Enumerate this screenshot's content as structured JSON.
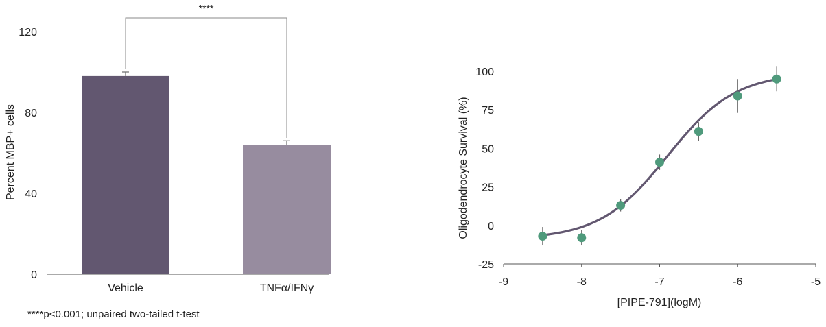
{
  "chart_data": [
    {
      "type": "bar",
      "categories": [
        "Vehicle",
        "TNFα/IFNγ"
      ],
      "values": [
        98,
        64
      ],
      "errors": [
        2,
        2
      ],
      "colors": [
        "#625770",
        "#978c9f"
      ],
      "ylabel": "Percent MBP+ cells",
      "xlabel": "",
      "ylim": [
        0,
        120
      ],
      "yticks": [
        0,
        40,
        80,
        120
      ],
      "grid": false,
      "significance": {
        "label": "****",
        "between": [
          "Vehicle",
          "TNFα/IFNγ"
        ]
      },
      "footnote": "****p<0.001; unpaired two-tailed t-test"
    },
    {
      "type": "scatter",
      "xlabel": "[PIPE-791](logM)",
      "ylabel": "Oligodendrocyte Survival (%)",
      "xlim": [
        -9,
        -5
      ],
      "ylim": [
        -25,
        100
      ],
      "xticks": [
        -9,
        -8,
        -7,
        -6,
        -5
      ],
      "yticks": [
        -25,
        0,
        25,
        50,
        75,
        100
      ],
      "grid": false,
      "point_color": "#4f9a7c",
      "curve_color": "#625770",
      "series": [
        {
          "x": [
            -8.5,
            -8.0,
            -7.5,
            -7.0,
            -6.5,
            -6.0,
            -5.5
          ],
          "y": [
            -7,
            -8,
            13,
            41,
            61,
            84,
            95
          ],
          "error": [
            6,
            5,
            4,
            5,
            6,
            11,
            8
          ]
        }
      ],
      "fit": {
        "type": "sigmoidal",
        "bottom": -9,
        "top": 99,
        "log_ec50": -6.9,
        "hill": 1.0
      }
    }
  ]
}
